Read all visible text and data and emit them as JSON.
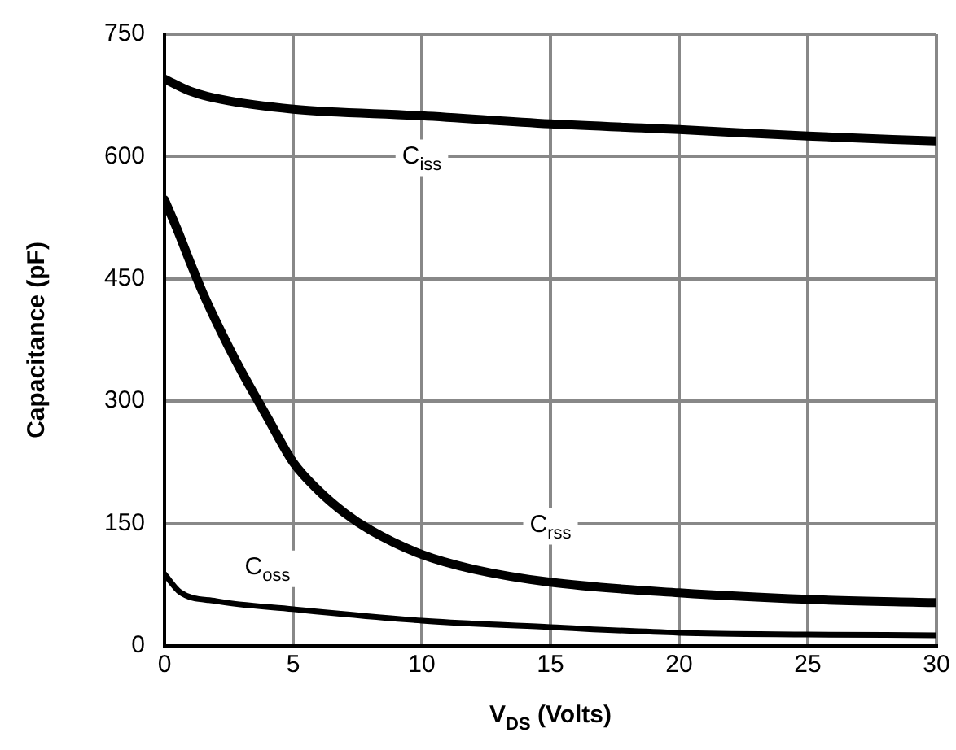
{
  "chart_data": {
    "type": "line",
    "xlabel": "V$_{DS}$ (Volts)",
    "ylabel": "Capacitance (pF)",
    "xlim": [
      0,
      30
    ],
    "xticks": [
      0,
      5,
      10,
      15,
      20,
      25,
      30
    ],
    "ylim": [
      0,
      750
    ],
    "yticks": [
      0,
      150,
      300,
      450,
      600,
      750
    ],
    "grid": true,
    "marker": "none",
    "line_style": "solid",
    "series": [
      {
        "color": "#000000",
        "x": [
          0,
          1,
          2.2,
          5,
          10,
          15,
          20,
          25,
          30
        ],
        "values": [
          695,
          680,
          670,
          658,
          650,
          640,
          633,
          625,
          619
        ]
      },
      {
        "color": "#000000",
        "x": [
          0,
          0.5,
          1,
          1.5,
          2,
          2.5,
          3,
          4,
          5,
          6,
          7,
          8,
          10,
          12,
          15,
          20,
          25,
          30
        ],
        "values": [
          547,
          510,
          470,
          432,
          398,
          366,
          336,
          280,
          225,
          190,
          163,
          142,
          112,
          94,
          78,
          65,
          57,
          53
        ]
      },
      {
        "color": "#000000",
        "x": [
          0,
          0.6,
          2,
          5,
          10,
          15,
          20,
          25,
          30
        ],
        "values": [
          88,
          66,
          55,
          45,
          31,
          23,
          16,
          14,
          13
        ]
      }
    ],
    "annotations": [
      {
        "text": "C$_{iss}$",
        "x": 10,
        "y": 600
      },
      {
        "text": "C$_{rss}$",
        "x": 15,
        "y": 148
      },
      {
        "text": "C$_{oss}$",
        "x": 4,
        "y": 96
      }
    ]
  }
}
